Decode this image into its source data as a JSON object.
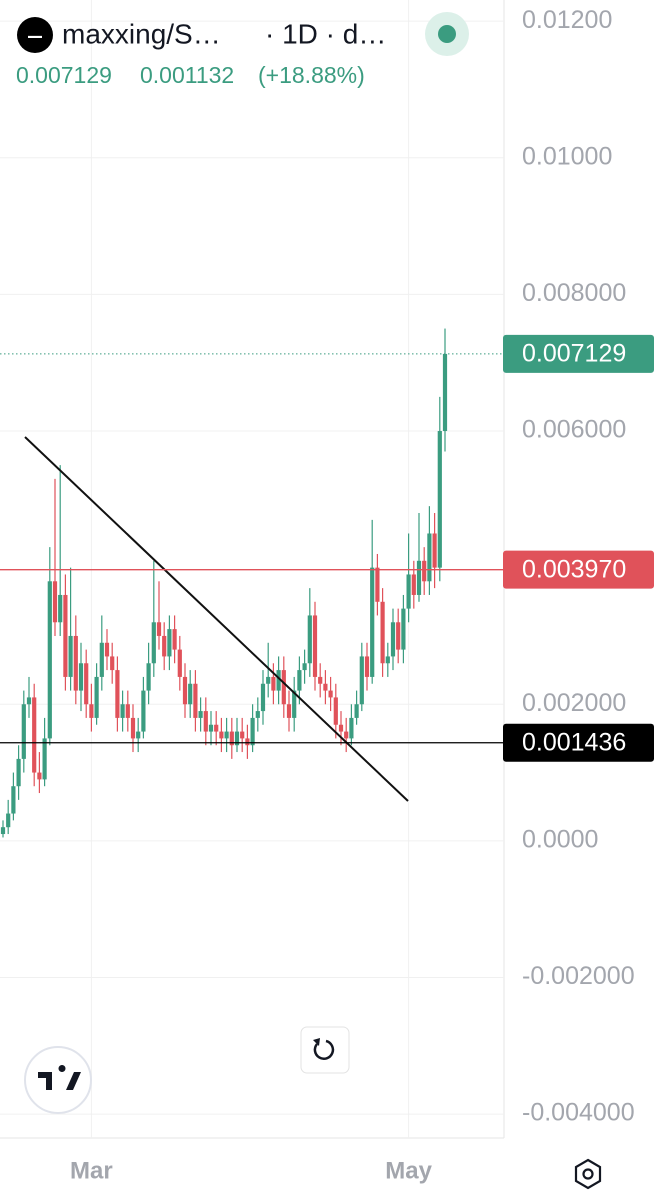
{
  "chart_data": {
    "type": "candlestick",
    "legend": {
      "symbol": "maxxing/S…",
      "interval": "· 1D · d…",
      "close": "0.007129",
      "change": "0.001132",
      "change_pct": "(+18.88%)"
    },
    "up_color": "#3b9c80",
    "down_color": "#e0525a",
    "grid": true,
    "categories": [
      null,
      null,
      null,
      null,
      null,
      null,
      null,
      null,
      null,
      null,
      null,
      null,
      null,
      null,
      null,
      null,
      null,
      "Mar",
      null,
      null,
      null,
      null,
      null,
      null,
      null,
      null,
      null,
      null,
      null,
      null,
      null,
      null,
      null,
      null,
      null,
      null,
      null,
      null,
      null,
      null,
      null,
      null,
      null,
      null,
      null,
      null,
      null,
      null,
      null,
      null,
      null,
      null,
      null,
      null,
      null,
      null,
      null,
      null,
      null,
      null,
      null,
      null,
      null,
      null,
      null,
      null,
      null,
      null,
      null,
      null,
      null,
      null,
      null,
      null,
      null,
      null,
      null,
      null,
      "May",
      null,
      null,
      null,
      null,
      null,
      null,
      null
    ],
    "open": [
      0.0001,
      0.0002,
      0.0004,
      0.0008,
      0.0012,
      0.002,
      0.0021,
      0.001,
      0.0009,
      0.0015,
      0.0038,
      0.0032,
      0.0036,
      0.0024,
      0.003,
      0.0022,
      0.0026,
      0.002,
      0.0018,
      0.0024,
      0.0029,
      0.0027,
      0.0025,
      0.0018,
      0.002,
      0.0018,
      0.0015,
      0.0016,
      0.0022,
      0.0026,
      0.0032,
      0.003,
      0.0027,
      0.0031,
      0.0028,
      0.0024,
      0.002,
      0.0023,
      0.0018,
      0.0019,
      0.0016,
      0.0017,
      0.0016,
      0.0015,
      0.0016,
      0.0014,
      0.0016,
      0.0015,
      0.0014,
      0.0018,
      0.0019,
      0.0023,
      0.0024,
      0.0022,
      0.0025,
      0.002,
      0.0018,
      0.0022,
      0.0025,
      0.0026,
      0.0033,
      0.0024,
      0.0023,
      0.0022,
      0.0021,
      0.0017,
      0.0016,
      0.0015,
      0.0018,
      0.002,
      0.0027,
      0.0024,
      0.004,
      0.0035,
      0.0026,
      0.0027,
      0.0032,
      0.0028,
      0.0034,
      0.0039,
      0.0036,
      0.0041,
      0.0038,
      0.0045,
      0.004,
      0.006
    ],
    "high": [
      0.0003,
      0.0006,
      0.001,
      0.0014,
      0.0022,
      0.0024,
      0.0023,
      0.0013,
      0.0018,
      0.0043,
      0.0053,
      0.0055,
      0.0039,
      0.004,
      0.0033,
      0.0029,
      0.0028,
      0.0023,
      0.0026,
      0.0033,
      0.0031,
      0.0029,
      0.0027,
      0.0022,
      0.0022,
      0.002,
      0.0018,
      0.0024,
      0.0029,
      0.0041,
      0.0038,
      0.0032,
      0.0033,
      0.0033,
      0.003,
      0.0026,
      0.0025,
      0.0025,
      0.0021,
      0.0021,
      0.0019,
      0.0019,
      0.0018,
      0.0018,
      0.0018,
      0.0018,
      0.0018,
      0.0017,
      0.002,
      0.0021,
      0.0025,
      0.0029,
      0.0026,
      0.0027,
      0.0027,
      0.0022,
      0.0024,
      0.0027,
      0.0028,
      0.0037,
      0.0035,
      0.0026,
      0.0025,
      0.0024,
      0.0023,
      0.0019,
      0.0018,
      0.002,
      0.0022,
      0.0029,
      0.0029,
      0.0047,
      0.0042,
      0.0037,
      0.0029,
      0.0034,
      0.0034,
      0.0036,
      0.0045,
      0.0041,
      0.0048,
      0.0043,
      0.0049,
      0.0048,
      0.0065,
      0.0075
    ],
    "low": [
      5e-05,
      0.0001,
      0.0003,
      0.0006,
      0.001,
      0.0018,
      0.0008,
      0.0007,
      0.0008,
      0.0014,
      0.003,
      0.003,
      0.0022,
      0.0022,
      0.002,
      0.0019,
      0.0018,
      0.0016,
      0.0017,
      0.0022,
      0.0025,
      0.0023,
      0.0016,
      0.0016,
      0.0016,
      0.0013,
      0.0013,
      0.0015,
      0.002,
      0.0024,
      0.0028,
      0.0025,
      0.0025,
      0.0026,
      0.0022,
      0.0018,
      0.0018,
      0.0016,
      0.0016,
      0.0014,
      0.0014,
      0.0014,
      0.0013,
      0.0013,
      0.0012,
      0.0013,
      0.0013,
      0.0012,
      0.0013,
      0.0016,
      0.0017,
      0.0021,
      0.002,
      0.002,
      0.0018,
      0.0016,
      0.0016,
      0.002,
      0.0023,
      0.0024,
      0.0022,
      0.0021,
      0.002,
      0.0019,
      0.0015,
      0.0014,
      0.0013,
      0.0014,
      0.0017,
      0.0019,
      0.0022,
      0.0023,
      0.0033,
      0.0024,
      0.0024,
      0.0025,
      0.0026,
      0.0026,
      0.0032,
      0.0034,
      0.0035,
      0.0036,
      0.0036,
      0.0037,
      0.0038,
      0.0057
    ],
    "close": [
      0.0002,
      0.0004,
      0.0008,
      0.0012,
      0.002,
      0.0021,
      0.001,
      0.0009,
      0.0015,
      0.0038,
      0.0032,
      0.0036,
      0.0024,
      0.003,
      0.0022,
      0.0026,
      0.002,
      0.0018,
      0.0024,
      0.0029,
      0.0027,
      0.0025,
      0.0018,
      0.002,
      0.0018,
      0.0015,
      0.0016,
      0.0022,
      0.0026,
      0.0032,
      0.003,
      0.0027,
      0.0031,
      0.0028,
      0.0024,
      0.002,
      0.0023,
      0.0018,
      0.0019,
      0.0016,
      0.0017,
      0.0016,
      0.0015,
      0.0016,
      0.0014,
      0.0016,
      0.0015,
      0.0014,
      0.0018,
      0.0019,
      0.0023,
      0.0024,
      0.0022,
      0.0025,
      0.002,
      0.0018,
      0.0022,
      0.0025,
      0.0026,
      0.0033,
      0.0024,
      0.0023,
      0.0022,
      0.0021,
      0.0017,
      0.0016,
      0.0015,
      0.0018,
      0.002,
      0.0027,
      0.0024,
      0.004,
      0.0035,
      0.0026,
      0.0027,
      0.0032,
      0.0028,
      0.0034,
      0.0039,
      0.0036,
      0.0041,
      0.0038,
      0.0045,
      0.004,
      0.006,
      0.007129
    ],
    "ylim": [
      -0.00435,
      0.01231
    ],
    "yticks": [
      {
        "value": 0.012,
        "label": "0.01200"
      },
      {
        "value": 0.01,
        "label": "0.01000"
      },
      {
        "value": 0.008,
        "label": "0.008000"
      },
      {
        "value": 0.006,
        "label": "0.006000"
      },
      {
        "value": 0.002,
        "label": "0.002000"
      },
      {
        "value": 0,
        "label": "0.0000"
      },
      {
        "value": -0.002,
        "label": "-0.002000"
      },
      {
        "value": -0.004,
        "label": "-0.004000"
      }
    ],
    "price_lines": [
      {
        "value": 0.007129,
        "color": "#3b9c80",
        "style": "dotted"
      },
      {
        "value": 0.00397,
        "label": "0.003970",
        "color": "#e0525a",
        "style": "solid"
      },
      {
        "value": 0.001436,
        "label": "0.001436",
        "color": "#000000",
        "style": "solid"
      }
    ]
  }
}
